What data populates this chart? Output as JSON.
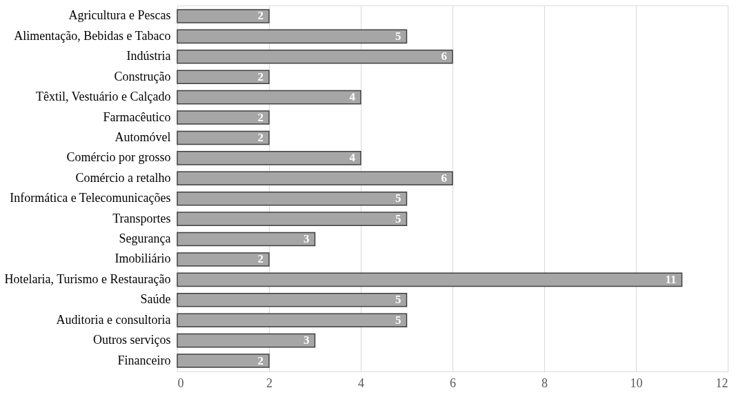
{
  "chart_data": {
    "type": "bar",
    "orientation": "horizontal",
    "categories": [
      "Agricultura e Pescas",
      "Alimentação, Bebidas e Tabaco",
      "Indústria",
      "Construção",
      "Têxtil, Vestuário e Calçado",
      "Farmacêutico",
      "Automóvel",
      "Comércio por grosso",
      "Comércio a retalho",
      "Informática e Telecomunicações",
      "Transportes",
      "Segurança",
      "Imobiliário",
      "Hotelaria, Turismo e Restauração",
      "Saúde",
      "Auditoria e consultoria",
      "Outros serviços",
      "Financeiro"
    ],
    "values": [
      2,
      5,
      6,
      2,
      4,
      2,
      2,
      4,
      6,
      5,
      5,
      3,
      2,
      11,
      5,
      5,
      3,
      2
    ],
    "color": "#a6a6a6",
    "xlim": [
      0,
      12
    ],
    "xticks": [
      0,
      2,
      4,
      6,
      8,
      10,
      12
    ],
    "grid": "x",
    "data_labels": true
  }
}
